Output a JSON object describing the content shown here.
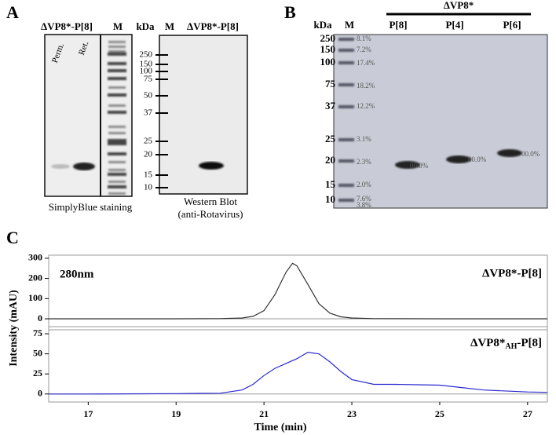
{
  "panel_A": {
    "letter": "A",
    "gel1_title": "ΔVP8*-P[8]",
    "gel1_marker": "M",
    "lanes": [
      "Perm.",
      "Ret."
    ],
    "kda": "kDa",
    "markers": [
      "250",
      "150",
      "100",
      "75",
      "50",
      "37",
      "25",
      "20",
      "15",
      "10"
    ],
    "gel2_marker": "M",
    "gel2_title": "ΔVP8*-P[8]",
    "caption1": "SimplyBlue staining",
    "caption2": [
      "Western Blot",
      "(anti-Rotavirus)"
    ]
  },
  "panel_B": {
    "letter": "B",
    "group": "ΔVP8*",
    "kda": "kDa",
    "marker": "M",
    "lanes": [
      "P[8]",
      "P[4]",
      "P[6]"
    ],
    "markers": [
      "250",
      "150",
      "100",
      "75",
      "37",
      "25",
      "20",
      "15",
      "10"
    ],
    "marker_percents": [
      "8.1%",
      "7.2%",
      "17.4%",
      "18.2%",
      "12.2%",
      "3.1%",
      "2.3%",
      "2.0%",
      "7.6%",
      "3.8%"
    ],
    "band_percents": [
      "00.0%",
      "00.0%",
      "00.0%"
    ]
  },
  "panel_C": {
    "letter": "C",
    "ylabel": "Intensity (mAU)",
    "xlabel": "Time (min)"
  },
  "chart_data": [
    {
      "type": "line",
      "annotation": "280nm",
      "label": "ΔVP8*-P[8]",
      "x": [
        16.1,
        17,
        19,
        20,
        20.5,
        20.75,
        21,
        21.25,
        21.5,
        21.65,
        21.75,
        22,
        22.25,
        22.5,
        22.75,
        23,
        23.5,
        25,
        27,
        27.45
      ],
      "series": [
        {
          "color": "#333333",
          "values": [
            0,
            0,
            0,
            1,
            4,
            12,
            40,
            120,
            230,
            275,
            262,
            170,
            75,
            28,
            10,
            4,
            1,
            0,
            0,
            0
          ]
        }
      ],
      "xlim": [
        16.1,
        27.45
      ],
      "ylim": [
        -31,
        315
      ],
      "yticks": [
        0,
        100,
        200,
        300
      ]
    },
    {
      "type": "line",
      "label": {
        "main": "ΔVP8*",
        "sub": "AH",
        "end": "-P[8]"
      },
      "x": [
        16.1,
        17,
        19,
        20,
        20.5,
        20.75,
        21,
        21.25,
        21.5,
        21.75,
        22,
        22.25,
        22.5,
        22.75,
        23,
        23.5,
        24,
        24.5,
        25,
        25.5,
        26,
        27,
        27.45
      ],
      "series": [
        {
          "color": "#2a2ad0",
          "values": [
            0,
            0,
            0.5,
            1,
            5,
            12,
            23,
            32,
            38,
            44,
            52,
            50,
            40,
            28,
            18,
            12,
            12,
            11.5,
            11,
            8,
            5,
            2.5,
            2
          ]
        }
      ],
      "xlim": [
        16.1,
        27.45
      ],
      "xticks": [
        17,
        19,
        21,
        23,
        25,
        27
      ],
      "ylim": [
        -10,
        79
      ],
      "yticks": [
        0,
        25,
        50,
        75
      ]
    }
  ]
}
